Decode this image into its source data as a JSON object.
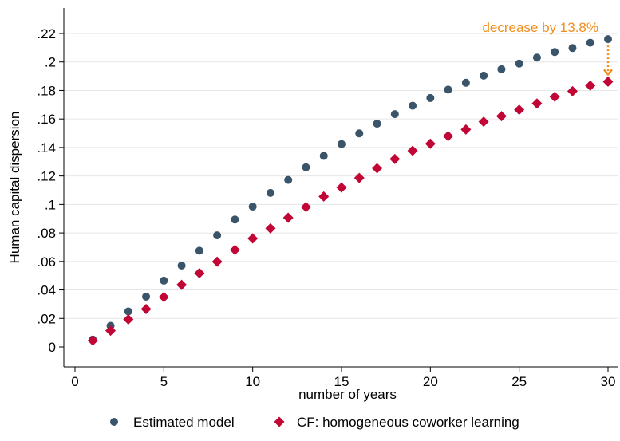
{
  "chart_data": {
    "type": "scatter",
    "title": "",
    "xlabel": "number of years",
    "ylabel": "Human capital dispersion",
    "xlim": [
      0,
      30
    ],
    "ylim": [
      0,
      0.22
    ],
    "grid": true,
    "legend_position": "bottom",
    "x_ticks": [
      {
        "value": 0,
        "label": "0"
      },
      {
        "value": 5,
        "label": "5"
      },
      {
        "value": 10,
        "label": "10"
      },
      {
        "value": 15,
        "label": "15"
      },
      {
        "value": 20,
        "label": "20"
      },
      {
        "value": 25,
        "label": "25"
      },
      {
        "value": 30,
        "label": "30"
      }
    ],
    "y_ticks": [
      {
        "value": 0,
        "label": "0"
      },
      {
        "value": 0.02,
        "label": ".02"
      },
      {
        "value": 0.04,
        "label": ".04"
      },
      {
        "value": 0.06,
        "label": ".06"
      },
      {
        "value": 0.08,
        "label": ".08"
      },
      {
        "value": 0.1,
        "label": ".1"
      },
      {
        "value": 0.12,
        "label": ".12"
      },
      {
        "value": 0.14,
        "label": ".14"
      },
      {
        "value": 0.16,
        "label": ".16"
      },
      {
        "value": 0.18,
        "label": ".18"
      },
      {
        "value": 0.2,
        "label": ".2"
      },
      {
        "value": 0.22,
        "label": ".22"
      }
    ],
    "x": [
      1,
      2,
      3,
      4,
      5,
      6,
      7,
      8,
      9,
      10,
      11,
      12,
      13,
      14,
      15,
      16,
      17,
      18,
      19,
      20,
      21,
      22,
      23,
      24,
      25,
      26,
      27,
      28,
      29,
      30
    ],
    "series": [
      {
        "name": "Estimated model",
        "marker": "circle",
        "color": "#3a556a",
        "values": [
          0.0052,
          0.0148,
          0.0249,
          0.0353,
          0.0465,
          0.0571,
          0.0675,
          0.0783,
          0.0894,
          0.0985,
          0.1081,
          0.1172,
          0.1261,
          0.1341,
          0.1424,
          0.1499,
          0.1567,
          0.1634,
          0.1693,
          0.1747,
          0.1806,
          0.1854,
          0.1904,
          0.1949,
          0.1989,
          0.2031,
          0.207,
          0.2098,
          0.2135,
          0.216
        ]
      },
      {
        "name": "CF: homogeneous coworker learning",
        "marker": "diamond",
        "color": "#c10534",
        "values": [
          0.0045,
          0.0114,
          0.0193,
          0.0266,
          0.035,
          0.0436,
          0.0518,
          0.0598,
          0.0681,
          0.0761,
          0.0832,
          0.0907,
          0.0982,
          0.1056,
          0.1119,
          0.1186,
          0.1254,
          0.1319,
          0.1377,
          0.1426,
          0.148,
          0.1526,
          0.1581,
          0.162,
          0.1665,
          0.1709,
          0.1756,
          0.1795,
          0.1834,
          0.1862
        ]
      }
    ],
    "annotation": {
      "text": "decrease by 13.8%",
      "color": "#f28e1c",
      "arrow_x": 30,
      "arrow_from": 0.216,
      "arrow_to": 0.1862
    }
  }
}
